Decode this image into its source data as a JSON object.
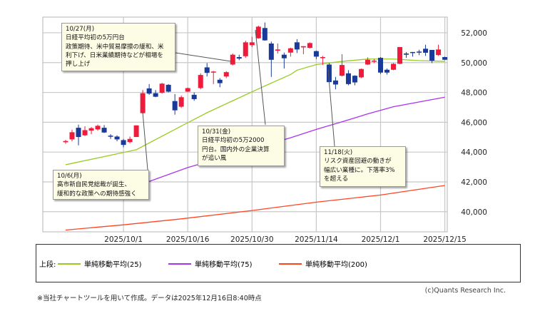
{
  "chart_data": {
    "type": "candlestick",
    "y_tick_labels": [
      "40,000",
      "42,000",
      "44,000",
      "46,000",
      "48,000",
      "50,000",
      "52,000"
    ],
    "y_ticks": [
      40000,
      42000,
      44000,
      46000,
      48000,
      50000,
      52000
    ],
    "ylim": [
      38650,
      53050
    ],
    "x_tick_labels": [
      "2025/10/1",
      "2025/10/16",
      "2025/10/30",
      "2025/11/14",
      "2025/12/1",
      "2025/12/15"
    ],
    "x_tick_dates": [
      "2025-10-01",
      "2025-10-16",
      "2025-10-30",
      "2025-11-14",
      "2025-12-01",
      "2025-12-15"
    ],
    "grid": true,
    "up_color": "#ee1c3c",
    "down_color": "#1a3a9a",
    "columns": [
      "date",
      "open",
      "high",
      "low",
      "close"
    ],
    "candles": [
      [
        "2025-09-17",
        44660,
        44820,
        44550,
        44740
      ],
      [
        "2025-09-18",
        44850,
        45500,
        44720,
        45330
      ],
      [
        "2025-09-19",
        45630,
        45840,
        44450,
        45010
      ],
      [
        "2025-09-22",
        45120,
        45730,
        45070,
        45470
      ],
      [
        "2025-09-24",
        45440,
        45680,
        45200,
        45600
      ],
      [
        "2025-09-25",
        45520,
        45840,
        45440,
        45760
      ],
      [
        "2025-09-26",
        45630,
        45810,
        45280,
        45310
      ],
      [
        "2025-09-29",
        45100,
        45200,
        44880,
        45040
      ],
      [
        "2025-09-30",
        45040,
        45120,
        44720,
        44850
      ],
      [
        "2025-10-01",
        44800,
        44880,
        44320,
        44480
      ],
      [
        "2025-10-02",
        44670,
        45040,
        44590,
        44880
      ],
      [
        "2025-10-03",
        45010,
        45790,
        45010,
        45790
      ],
      [
        "2025-10-06",
        46610,
        48160,
        46560,
        47950
      ],
      [
        "2025-10-07",
        48270,
        48560,
        47840,
        47920
      ],
      [
        "2025-10-08",
        47950,
        48160,
        47680,
        47710
      ],
      [
        "2025-10-09",
        47970,
        48640,
        47920,
        48590
      ],
      [
        "2025-10-10",
        48510,
        48560,
        48000,
        48050
      ],
      [
        "2025-10-14",
        47420,
        47890,
        46510,
        46800
      ],
      [
        "2025-10-15",
        47040,
        47790,
        46960,
        47680
      ],
      [
        "2025-10-16",
        48050,
        48320,
        48030,
        48290
      ],
      [
        "2025-10-17",
        47840,
        48000,
        47440,
        47550
      ],
      [
        "2025-10-20",
        48290,
        49280,
        48210,
        49170
      ],
      [
        "2025-10-21",
        49680,
        49970,
        49070,
        49310
      ],
      [
        "2025-10-22",
        49340,
        49440,
        48560,
        49400
      ],
      [
        "2025-10-23",
        48850,
        48960,
        48350,
        48620
      ],
      [
        "2025-10-24",
        49070,
        49420,
        48960,
        49360
      ],
      [
        "2025-10-27",
        49870,
        50610,
        49810,
        50530
      ],
      [
        "2025-10-28",
        50370,
        50530,
        50160,
        50270
      ],
      [
        "2025-10-29",
        50430,
        51470,
        50320,
        51360
      ],
      [
        "2025-10-30",
        51170,
        51730,
        51040,
        51360
      ],
      [
        "2025-10-31",
        51630,
        52480,
        51600,
        52410
      ],
      [
        "2025-11-04",
        52320,
        52690,
        51470,
        51490
      ],
      [
        "2025-11-05",
        51280,
        51410,
        49040,
        50190
      ],
      [
        "2025-11-06",
        50800,
        51280,
        50610,
        50880
      ],
      [
        "2025-11-07",
        50530,
        50670,
        49600,
        50290
      ],
      [
        "2025-11-10",
        50670,
        51000,
        50400,
        50960
      ],
      [
        "2025-11-11",
        51360,
        51570,
        50640,
        50880
      ],
      [
        "2025-11-12",
        51020,
        51100,
        50560,
        51100
      ],
      [
        "2025-11-13",
        50990,
        51360,
        50950,
        51310
      ],
      [
        "2025-11-14",
        50770,
        50800,
        50240,
        50400
      ],
      [
        "2025-11-17",
        50300,
        50450,
        49840,
        50370
      ],
      [
        "2025-11-18",
        49870,
        49970,
        48690,
        48690
      ],
      [
        "2025-11-19",
        48800,
        49040,
        48210,
        48530
      ],
      [
        "2025-11-20",
        49120,
        50560,
        49070,
        49840
      ],
      [
        "2025-11-21",
        49280,
        49490,
        48480,
        48560
      ],
      [
        "2025-11-25",
        49120,
        49150,
        48480,
        48670
      ],
      [
        "2025-11-26",
        49010,
        49600,
        48960,
        49570
      ],
      [
        "2025-11-27",
        49870,
        50350,
        49840,
        50190
      ],
      [
        "2025-11-28",
        50080,
        50240,
        49970,
        50130
      ],
      [
        "2025-12-01",
        50320,
        50370,
        49230,
        49330
      ],
      [
        "2025-12-02",
        49520,
        49600,
        49200,
        49330
      ],
      [
        "2025-12-03",
        49520,
        49970,
        49490,
        49920
      ],
      [
        "2025-12-04",
        49920,
        51040,
        49890,
        51040
      ],
      [
        "2025-12-05",
        50610,
        50710,
        50320,
        50530
      ],
      [
        "2025-12-08",
        50710,
        50710,
        50400,
        50660
      ],
      [
        "2025-12-09",
        50740,
        50860,
        50500,
        50690
      ],
      [
        "2025-12-10",
        50930,
        51200,
        50450,
        50660
      ],
      [
        "2025-12-11",
        50850,
        50850,
        49970,
        50130
      ],
      [
        "2025-12-12",
        50510,
        51200,
        50450,
        50880
      ],
      [
        "2025-12-15",
        50370,
        50400,
        50160,
        50190
      ]
    ],
    "series": [
      {
        "name": "単純移動平均(25)",
        "color": "#99cc22",
        "points": [
          [
            "2025-09-17",
            43150
          ],
          [
            "2025-10-01",
            43970
          ],
          [
            "2025-10-03",
            44160
          ],
          [
            "2025-10-14",
            45520
          ],
          [
            "2025-10-21",
            46640
          ],
          [
            "2025-10-27",
            47440
          ],
          [
            "2025-10-31",
            48240
          ],
          [
            "2025-11-10",
            49200
          ],
          [
            "2025-11-11",
            49490
          ],
          [
            "2025-11-14",
            49870
          ],
          [
            "2025-11-20",
            50080
          ],
          [
            "2025-11-27",
            50240
          ],
          [
            "2025-12-03",
            50240
          ],
          [
            "2025-12-09",
            50130
          ],
          [
            "2025-12-15",
            50080
          ]
        ]
      },
      {
        "name": "単純移動平均(75)",
        "color": "#aa33ee",
        "points": [
          [
            "2025-10-07",
            42030
          ],
          [
            "2025-10-16",
            42960
          ],
          [
            "2025-11-10",
            44960
          ],
          [
            "2025-11-14",
            45520
          ],
          [
            "2025-11-20",
            46030
          ],
          [
            "2025-11-27",
            46560
          ],
          [
            "2025-12-03",
            47040
          ],
          [
            "2025-12-15",
            47680
          ]
        ]
      },
      {
        "name": "単純移動平均(200)",
        "color": "#ff4422",
        "points": [
          [
            "2025-09-17",
            38770
          ],
          [
            "2025-10-01",
            39120
          ],
          [
            "2025-10-15",
            39520
          ],
          [
            "2025-10-30",
            40080
          ],
          [
            "2025-11-14",
            40640
          ],
          [
            "2025-12-01",
            41120
          ],
          [
            "2025-12-15",
            41760
          ]
        ]
      }
    ],
    "annotations": [
      {
        "date": "2025-10-27",
        "lines": [
          "10/27(月)",
          "日経平均初の5万円台",
          "政策期待、米中貿易摩擦の緩和、米",
          "利下げ、日米業績期待などが相場を",
          "押し上げ"
        ]
      },
      {
        "date": "2025-10-31",
        "lines": [
          "10/31(金)",
          "日経平均初の5万2000",
          "円台。国内外の企業決算",
          "が追い風"
        ]
      },
      {
        "date": "2025-10-06",
        "lines": [
          "10/6(月)",
          "高市新自民党総裁が誕生、",
          "緩和的な政策への期待感強く"
        ]
      },
      {
        "date": "2025-11-18",
        "lines": [
          "11/18(火)",
          "リスク資産回避の動きが",
          "幅広い業種に。下落率3%",
          "を超える"
        ]
      }
    ]
  },
  "legend": {
    "prefix": "上段:",
    "items": [
      "単純移動平均(25)",
      "単純移動平均(75)",
      "単純移動平均(200)"
    ]
  },
  "footer": {
    "note": "※当社チャートツールを用いて作成。データは2025年12月16日8:40時点",
    "copyright": "(c)Quants Research Inc."
  }
}
